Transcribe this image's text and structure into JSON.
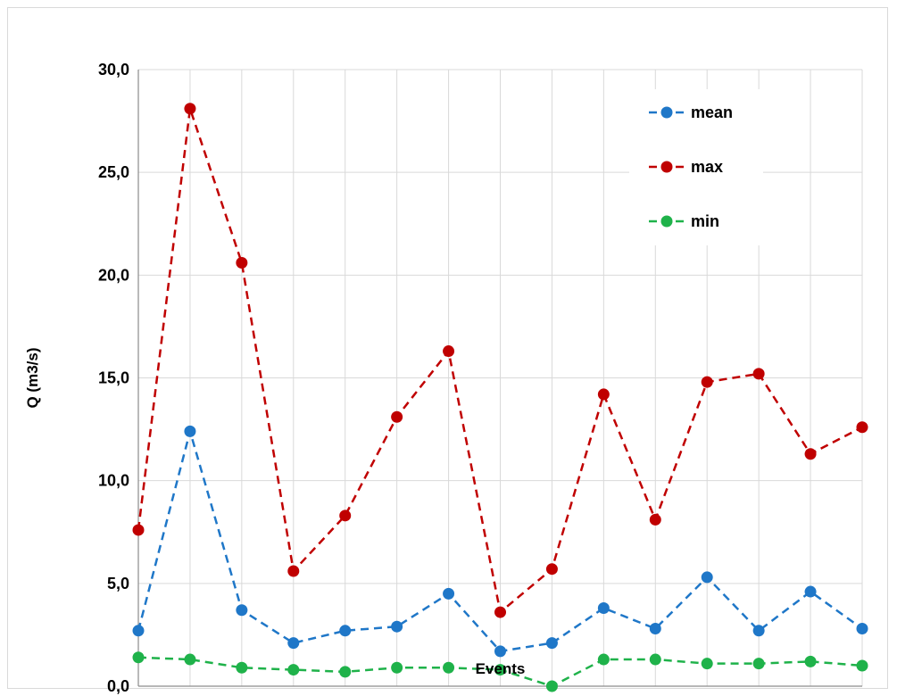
{
  "chart_data": {
    "type": "line",
    "title": "",
    "xlabel": "Events",
    "ylabel": "Q (m3/s)",
    "x": [
      1,
      2,
      3,
      4,
      5,
      6,
      7,
      8,
      9,
      10,
      11,
      12,
      13,
      14,
      15
    ],
    "ylim": [
      0,
      30
    ],
    "ytick_values": [
      0,
      5,
      10,
      15,
      20,
      25,
      30
    ],
    "ytick_labels": [
      "0,0",
      "5,0",
      "10,0",
      "15,0",
      "20,0",
      "25,0",
      "30,0"
    ],
    "grid": true,
    "legend_position": "top-right",
    "series": [
      {
        "name": "mean",
        "color": "#1f77c8",
        "line_style": "dashed",
        "values": [
          2.7,
          12.4,
          3.7,
          2.1,
          2.7,
          2.9,
          4.5,
          1.7,
          2.1,
          3.8,
          2.8,
          5.3,
          2.7,
          4.6,
          2.8
        ]
      },
      {
        "name": "max",
        "color": "#c00000",
        "line_style": "dashed",
        "values": [
          7.6,
          28.1,
          20.6,
          5.6,
          8.3,
          13.1,
          16.3,
          3.6,
          5.7,
          14.2,
          8.1,
          14.8,
          15.2,
          11.3,
          12.6
        ]
      },
      {
        "name": "min",
        "color": "#1fb24a",
        "line_style": "dashed",
        "values": [
          1.4,
          1.3,
          0.9,
          0.8,
          0.7,
          0.9,
          0.9,
          0.8,
          0.0,
          1.3,
          1.3,
          1.1,
          1.1,
          1.2,
          1.0
        ]
      }
    ]
  }
}
